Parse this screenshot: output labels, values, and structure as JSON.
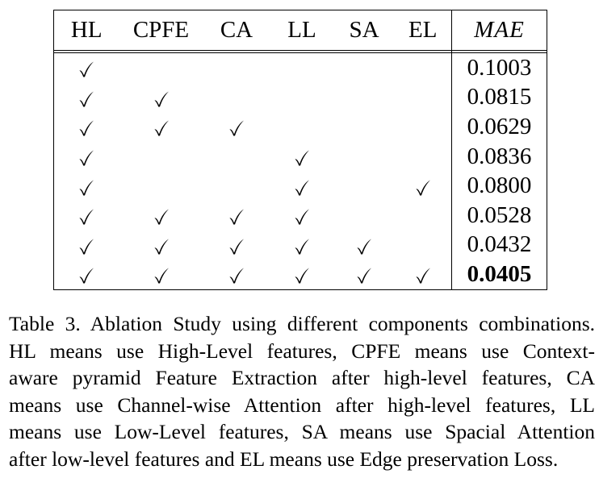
{
  "table": {
    "headers": [
      "HL",
      "CPFE",
      "CA",
      "LL",
      "SA",
      "EL",
      "MAE"
    ],
    "rows": [
      {
        "checks": [
          true,
          false,
          false,
          false,
          false,
          false
        ],
        "mae": "0.1003",
        "best": false
      },
      {
        "checks": [
          true,
          true,
          false,
          false,
          false,
          false
        ],
        "mae": "0.0815",
        "best": false
      },
      {
        "checks": [
          true,
          true,
          true,
          false,
          false,
          false
        ],
        "mae": "0.0629",
        "best": false
      },
      {
        "checks": [
          true,
          false,
          false,
          true,
          false,
          false
        ],
        "mae": "0.0836",
        "best": false
      },
      {
        "checks": [
          true,
          false,
          false,
          true,
          false,
          true
        ],
        "mae": "0.0800",
        "best": false
      },
      {
        "checks": [
          true,
          true,
          true,
          true,
          false,
          false
        ],
        "mae": "0.0528",
        "best": false
      },
      {
        "checks": [
          true,
          true,
          true,
          true,
          true,
          false
        ],
        "mae": "0.0432",
        "best": false
      },
      {
        "checks": [
          true,
          true,
          true,
          true,
          true,
          true
        ],
        "mae": "0.0405",
        "best": true
      }
    ]
  },
  "caption": {
    "lines": [
      "Table 3. Ablation Study using different components combinations.",
      "HL means use High-Level features, CPFE means use Context-",
      "aware pyramid Feature Extraction after high-level features, CA",
      "means use Channel-wise Attention after high-level features, LL",
      "means use Low-Level features, SA means use Spacial Attention",
      "after low-level features and EL means use Edge preservation Loss."
    ]
  }
}
